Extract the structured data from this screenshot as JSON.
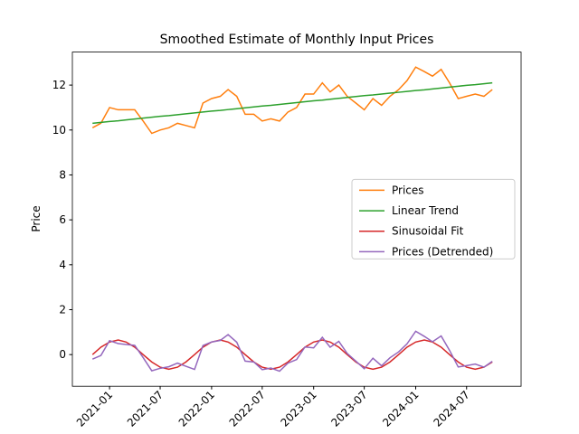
{
  "chart_data": {
    "type": "line",
    "title": "Smoothed Estimate of Monthly Input Prices",
    "ylabel": "Price",
    "x": [
      "2020-11",
      "2020-12",
      "2021-01",
      "2021-02",
      "2021-03",
      "2021-04",
      "2021-05",
      "2021-06",
      "2021-07",
      "2021-08",
      "2021-09",
      "2021-10",
      "2021-11",
      "2021-12",
      "2022-01",
      "2022-02",
      "2022-03",
      "2022-04",
      "2022-05",
      "2022-06",
      "2022-07",
      "2022-08",
      "2022-09",
      "2022-10",
      "2022-11",
      "2022-12",
      "2023-01",
      "2023-02",
      "2023-03",
      "2023-04",
      "2023-05",
      "2023-06",
      "2023-07",
      "2023-08",
      "2023-09",
      "2023-10",
      "2023-11",
      "2023-12",
      "2024-01",
      "2024-02",
      "2024-03",
      "2024-04",
      "2024-05",
      "2024-06",
      "2024-07",
      "2024-08",
      "2024-09",
      "2024-10"
    ],
    "series": [
      {
        "name": "Prices",
        "color": "#ff7f0e",
        "values": [
          10.1,
          10.3,
          11.0,
          10.9,
          10.9,
          10.9,
          10.4,
          9.85,
          10.0,
          10.1,
          10.3,
          10.2,
          10.1,
          11.2,
          11.4,
          11.5,
          11.8,
          11.5,
          10.7,
          10.7,
          10.4,
          10.5,
          10.4,
          10.8,
          11.0,
          11.6,
          11.6,
          12.1,
          11.7,
          12.0,
          11.5,
          11.2,
          10.9,
          11.4,
          11.1,
          11.5,
          11.8,
          12.2,
          12.8,
          12.6,
          12.4,
          12.7,
          12.1,
          11.4,
          11.5,
          11.6,
          11.5,
          11.8
        ]
      },
      {
        "name": "Linear Trend",
        "color": "#2ca02c",
        "values": [
          10.3,
          10.34,
          10.38,
          10.41,
          10.45,
          10.49,
          10.53,
          10.57,
          10.61,
          10.64,
          10.68,
          10.72,
          10.76,
          10.8,
          10.84,
          10.87,
          10.91,
          10.95,
          10.99,
          11.03,
          11.07,
          11.1,
          11.14,
          11.18,
          11.22,
          11.26,
          11.3,
          11.33,
          11.37,
          11.41,
          11.45,
          11.49,
          11.53,
          11.56,
          11.6,
          11.64,
          11.68,
          11.72,
          11.76,
          11.79,
          11.83,
          11.87,
          11.91,
          11.95,
          11.99,
          12.02,
          12.06,
          12.1
        ]
      },
      {
        "name": "Sinusoidal Fit",
        "color": "#d62728",
        "values": [
          0,
          0.33,
          0.56,
          0.65,
          0.56,
          0.33,
          0,
          -0.33,
          -0.56,
          -0.65,
          -0.56,
          -0.33,
          0,
          0.33,
          0.56,
          0.65,
          0.56,
          0.33,
          0,
          -0.33,
          -0.56,
          -0.65,
          -0.56,
          -0.33,
          0,
          0.33,
          0.56,
          0.65,
          0.56,
          0.33,
          0,
          -0.33,
          -0.56,
          -0.65,
          -0.56,
          -0.33,
          0,
          0.33,
          0.56,
          0.65,
          0.56,
          0.33,
          0,
          -0.33,
          -0.56,
          -0.65,
          -0.56,
          -0.33
        ]
      },
      {
        "name": "Prices (Detrended)",
        "color": "#9467bd",
        "values": [
          -0.2,
          -0.04,
          0.62,
          0.49,
          0.45,
          0.41,
          -0.13,
          -0.72,
          -0.61,
          -0.54,
          -0.38,
          -0.52,
          -0.66,
          0.4,
          0.56,
          0.63,
          0.89,
          0.55,
          -0.29,
          -0.33,
          -0.67,
          -0.6,
          -0.74,
          -0.38,
          -0.22,
          0.34,
          0.3,
          0.77,
          0.33,
          0.59,
          0.05,
          -0.29,
          -0.63,
          -0.16,
          -0.5,
          -0.14,
          0.12,
          0.48,
          1.04,
          0.81,
          0.57,
          0.83,
          0.19,
          -0.55,
          -0.49,
          -0.42,
          -0.56,
          -0.3
        ]
      }
    ],
    "xlim": [
      "2020-08-21",
      "2025-01-12"
    ],
    "xticks": [
      "2021-01",
      "2021-07",
      "2022-01",
      "2022-07",
      "2023-01",
      "2023-07",
      "2024-01",
      "2024-07"
    ],
    "ylim": [
      -1.41,
      13.47
    ],
    "yticks": [
      0,
      2,
      4,
      6,
      8,
      10,
      12
    ],
    "legend": "center right"
  }
}
